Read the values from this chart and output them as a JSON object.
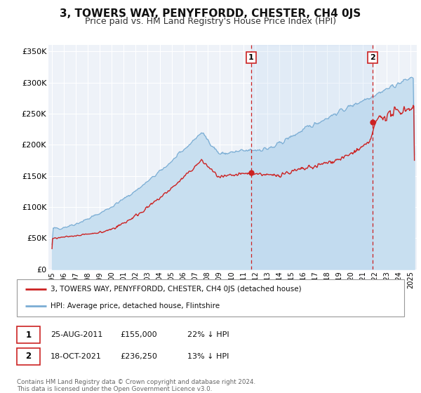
{
  "title": "3, TOWERS WAY, PENYFFORDD, CHESTER, CH4 0JS",
  "subtitle": "Price paid vs. HM Land Registry's House Price Index (HPI)",
  "title_fontsize": 11,
  "subtitle_fontsize": 9,
  "background_color": "#ffffff",
  "plot_bg_color": "#eef2f8",
  "grid_color": "#ffffff",
  "ylim": [
    0,
    360000
  ],
  "yticks": [
    0,
    50000,
    100000,
    150000,
    200000,
    250000,
    300000,
    350000
  ],
  "ytick_labels": [
    "£0",
    "£50K",
    "£100K",
    "£150K",
    "£200K",
    "£250K",
    "£300K",
    "£350K"
  ],
  "xlim_start": 1994.7,
  "xlim_end": 2025.5,
  "xtick_years": [
    1995,
    1996,
    1997,
    1998,
    1999,
    2000,
    2001,
    2002,
    2003,
    2004,
    2005,
    2006,
    2007,
    2008,
    2009,
    2010,
    2011,
    2012,
    2013,
    2014,
    2015,
    2016,
    2017,
    2018,
    2019,
    2020,
    2021,
    2022,
    2023,
    2024,
    2025
  ],
  "red_line_color": "#cc2222",
  "blue_line_color": "#7aadd4",
  "blue_fill_color": "#c8dff0",
  "sale1_x": 2011.65,
  "sale1_y": 155000,
  "sale2_x": 2021.8,
  "sale2_y": 236250,
  "legend_red": "3, TOWERS WAY, PENYFFORDD, CHESTER, CH4 0JS (detached house)",
  "legend_blue": "HPI: Average price, detached house, Flintshire",
  "sale1_date": "25-AUG-2011",
  "sale1_price": "£155,000",
  "sale1_hpi": "22% ↓ HPI",
  "sale2_date": "18-OCT-2021",
  "sale2_price": "£236,250",
  "sale2_hpi": "13% ↓ HPI",
  "footer1": "Contains HM Land Registry data © Crown copyright and database right 2024.",
  "footer2": "This data is licensed under the Open Government Licence v3.0."
}
